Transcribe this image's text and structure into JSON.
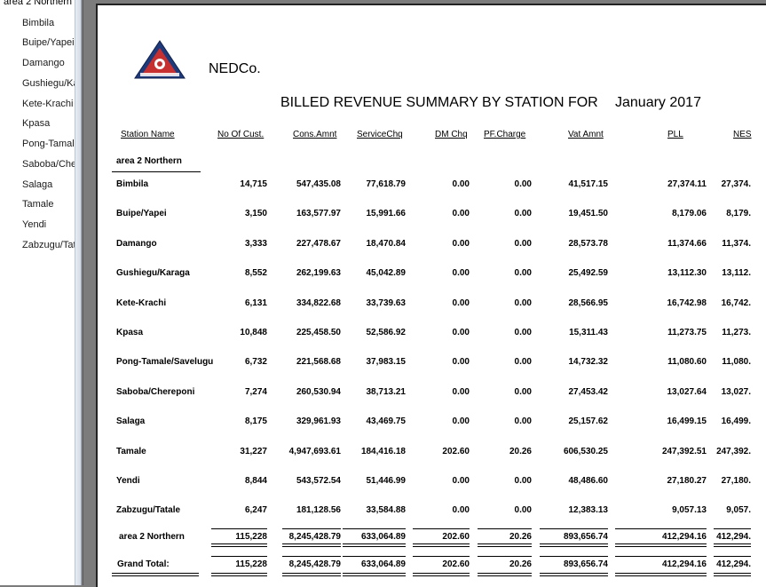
{
  "sidebar": {
    "root": "area 2 Northern",
    "items": [
      "Bimbila",
      "Buipe/Yapei",
      "Damango",
      "Gushiegu/Karaga",
      "Kete-Krachi",
      "Kpasa",
      "Pong-Tamale/Savelugu",
      "Saboba/Chereponi",
      "Salaga",
      "Tamale",
      "Yendi",
      "Zabzugu/Tatale"
    ]
  },
  "report": {
    "company": "NEDCo.",
    "title": "BILLED REVENUE SUMMARY BY STATION FOR",
    "month": "January 2017",
    "logo_icon": "nedco-logo-icon"
  },
  "table": {
    "headers": [
      "Station Name",
      "No Of Cust.",
      "Cons.Amnt",
      "ServiceChq",
      "DM Chq",
      "PF.Charge",
      "Vat Amnt",
      "PLL",
      "NES"
    ],
    "group": "area 2 Northern",
    "rows": [
      [
        "Bimbila",
        "14,715",
        "547,435.08",
        "77,618.79",
        "0.00",
        "0.00",
        "41,517.15",
        "27,374.11",
        "27,374."
      ],
      [
        "Buipe/Yapei",
        "3,150",
        "163,577.97",
        "15,991.66",
        "0.00",
        "0.00",
        "19,451.50",
        "8,179.06",
        "8,179."
      ],
      [
        "Damango",
        "3,333",
        "227,478.67",
        "18,470.84",
        "0.00",
        "0.00",
        "28,573.78",
        "11,374.66",
        "11,374."
      ],
      [
        "Gushiegu/Karaga",
        "8,552",
        "262,199.63",
        "45,042.89",
        "0.00",
        "0.00",
        "25,492.59",
        "13,112.30",
        "13,112."
      ],
      [
        "Kete-Krachi",
        "6,131",
        "334,822.68",
        "33,739.63",
        "0.00",
        "0.00",
        "28,566.95",
        "16,742.98",
        "16,742."
      ],
      [
        "Kpasa",
        "10,848",
        "225,458.50",
        "52,586.92",
        "0.00",
        "0.00",
        "15,311.43",
        "11,273.75",
        "11,273."
      ],
      [
        "Pong-Tamale/Savelugu",
        "6,732",
        "221,568.68",
        "37,983.15",
        "0.00",
        "0.00",
        "14,732.32",
        "11,080.60",
        "11,080."
      ],
      [
        "Saboba/Chereponi",
        "7,274",
        "260,530.94",
        "38,713.21",
        "0.00",
        "0.00",
        "27,453.42",
        "13,027.64",
        "13,027."
      ],
      [
        "Salaga",
        "8,175",
        "329,961.93",
        "43,469.75",
        "0.00",
        "0.00",
        "25,157.62",
        "16,499.15",
        "16,499."
      ],
      [
        "Tamale",
        "31,227",
        "4,947,693.61",
        "184,416.18",
        "202.60",
        "20.26",
        "606,530.25",
        "247,392.51",
        "247,392."
      ],
      [
        "Yendi",
        "8,844",
        "543,572.54",
        "51,446.99",
        "0.00",
        "0.00",
        "48,486.60",
        "27,180.27",
        "27,180."
      ],
      [
        "Zabzugu/Tatale",
        "6,247",
        "181,128.56",
        "33,584.88",
        "0.00",
        "0.00",
        "12,383.13",
        "9,057.13",
        "9,057."
      ]
    ],
    "totals": [
      [
        "area 2 Northern",
        "115,228",
        "8,245,428.79",
        "633,064.89",
        "202.60",
        "20.26",
        "893,656.74",
        "412,294.16",
        "412,294."
      ],
      [
        "Grand Total:",
        "115,228",
        "8,245,428.79",
        "633,064.89",
        "202.60",
        "20.26",
        "893,656.74",
        "412,294.16",
        "412,294."
      ]
    ]
  }
}
